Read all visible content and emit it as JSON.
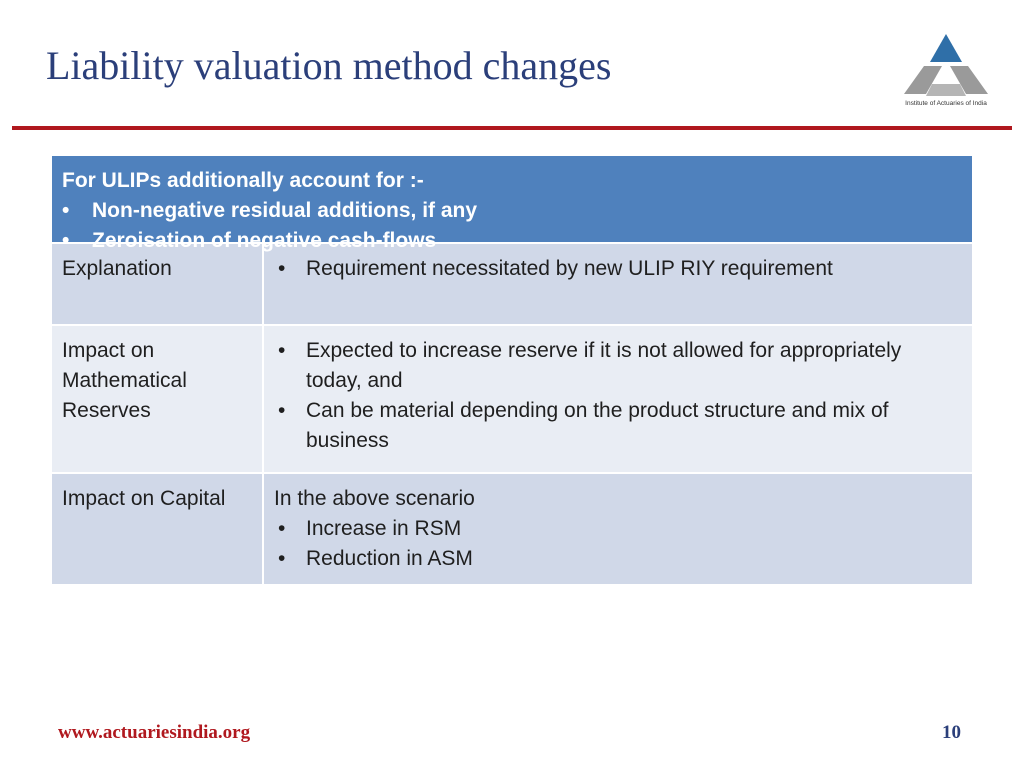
{
  "slide": {
    "title": "Liability valuation method changes",
    "logo_caption": "Institute of Actuaries of India",
    "footer_url": "www.actuariesindia.org",
    "page_number": "10"
  },
  "table": {
    "header": {
      "title": "For ULIPs additionally account for :-",
      "bullets": [
        "Non-negative residual additions, if any",
        "Zeroisation of  negative cash-flows"
      ]
    },
    "rows": [
      {
        "label": "Explanation",
        "bullets": [
          "Requirement necessitated by new ULIP RIY requirement"
        ]
      },
      {
        "label": "Impact on Mathematical Reserves",
        "bullets": [
          "Expected to increase reserve if it is not allowed for appropriately today, and",
          "Can be material depending on the product structure and mix of business"
        ]
      },
      {
        "label": "Impact on Capital",
        "intro": "In the above scenario",
        "bullets": [
          "Increase in RSM",
          "Reduction in ASM"
        ]
      }
    ]
  },
  "colors": {
    "title": "#2b3f7a",
    "rule": "#b0181e",
    "header_bg": "#4f81bd",
    "row_dark": "#d0d8e8",
    "row_light": "#e9edf4",
    "logo_blue": "#2f6fa8",
    "logo_gray": "#9a9a9a"
  }
}
